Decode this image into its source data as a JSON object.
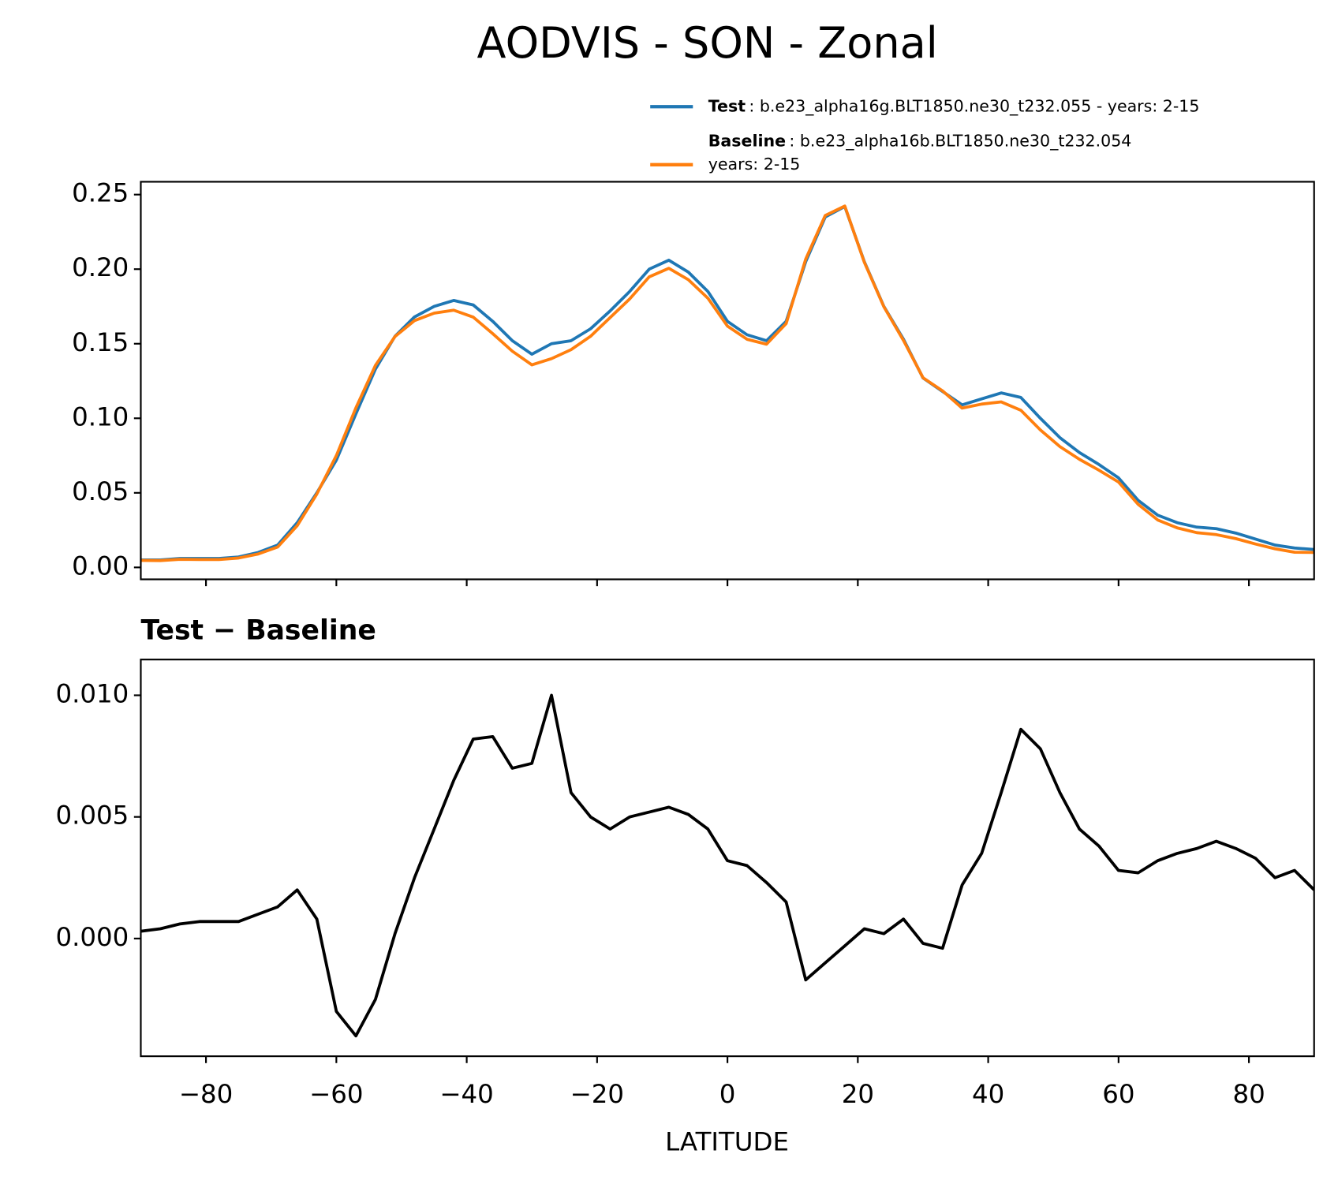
{
  "chart_data": [
    {
      "type": "line",
      "title": "AODVIS - SON - Zonal",
      "x": [
        -90,
        -87,
        -84,
        -81,
        -78,
        -75,
        -72,
        -69,
        -66,
        -63,
        -60,
        -57,
        -54,
        -51,
        -48,
        -45,
        -42,
        -39,
        -36,
        -33,
        -30,
        -27,
        -24,
        -21,
        -18,
        -15,
        -12,
        -9,
        -6,
        -3,
        0,
        3,
        6,
        9,
        12,
        15,
        18,
        21,
        24,
        27,
        30,
        33,
        36,
        39,
        42,
        45,
        48,
        51,
        54,
        57,
        60,
        63,
        66,
        69,
        72,
        75,
        78,
        81,
        84,
        87,
        90
      ],
      "series": [
        {
          "name": "Test",
          "label_lines": [
            ": b.e23_alpha16g.BLT1850.ne30_t232.055 - years: 2-15"
          ],
          "color": "#1f77b4",
          "values": [
            0.005,
            0.005,
            0.006,
            0.006,
            0.006,
            0.007,
            0.01,
            0.015,
            0.03,
            0.05,
            0.072,
            0.103,
            0.133,
            0.155,
            0.168,
            0.175,
            0.179,
            0.176,
            0.165,
            0.152,
            0.143,
            0.15,
            0.152,
            0.16,
            0.172,
            0.185,
            0.2,
            0.206,
            0.198,
            0.185,
            0.165,
            0.156,
            0.152,
            0.165,
            0.205,
            0.235,
            0.242,
            0.205,
            0.175,
            0.153,
            0.127,
            0.118,
            0.109,
            0.113,
            0.117,
            0.114,
            0.1,
            0.087,
            0.077,
            0.069,
            0.06,
            0.045,
            0.035,
            0.03,
            0.027,
            0.026,
            0.023,
            0.019,
            0.015,
            0.013,
            0.012
          ]
        },
        {
          "name": "Baseline",
          "label_lines": [
            ": b.e23_alpha16b.BLT1850.ne30_t232.054",
            "years: 2-15"
          ],
          "color": "#ff7f0e",
          "values": [
            0.0047,
            0.0046,
            0.0054,
            0.0053,
            0.0053,
            0.0063,
            0.009,
            0.0137,
            0.028,
            0.0492,
            0.075,
            0.107,
            0.1355,
            0.1548,
            0.1655,
            0.1705,
            0.1725,
            0.1678,
            0.1567,
            0.145,
            0.1358,
            0.14,
            0.146,
            0.155,
            0.1675,
            0.18,
            0.1948,
            0.2006,
            0.1929,
            0.1805,
            0.1618,
            0.153,
            0.1497,
            0.1635,
            0.2067,
            0.236,
            0.2423,
            0.2046,
            0.1748,
            0.1522,
            0.1272,
            0.1184,
            0.1068,
            0.1095,
            0.111,
            0.1054,
            0.0922,
            0.081,
            0.0725,
            0.0652,
            0.0572,
            0.0423,
            0.0318,
            0.0265,
            0.0233,
            0.022,
            0.0193,
            0.0157,
            0.0125,
            0.0102,
            0.01
          ]
        }
      ],
      "xlim": [
        -90,
        90
      ],
      "xticks": [
        -80,
        -60,
        -40,
        -20,
        0,
        20,
        40,
        60,
        80
      ],
      "ylim": [
        -0.008,
        0.2586
      ],
      "yticks": [
        {
          "value": 0,
          "label": "0.00"
        },
        {
          "value": 0.05,
          "label": "0.05"
        },
        {
          "value": 0.1,
          "label": "0.10"
        },
        {
          "value": 0.15,
          "label": "0.15"
        },
        {
          "value": 0.2,
          "label": "0.20"
        },
        {
          "value": 0.25,
          "label": "0.25"
        }
      ]
    },
    {
      "type": "line",
      "title": "Test − Baseline",
      "xlabel": "LATITUDE",
      "color": "#000000",
      "x": [
        -90,
        -87,
        -84,
        -81,
        -78,
        -75,
        -72,
        -69,
        -66,
        -63,
        -60,
        -57,
        -54,
        -51,
        -48,
        -45,
        -42,
        -39,
        -36,
        -33,
        -30,
        -27,
        -24,
        -21,
        -18,
        -15,
        -12,
        -9,
        -6,
        -3,
        0,
        3,
        6,
        9,
        12,
        15,
        18,
        21,
        24,
        27,
        30,
        33,
        36,
        39,
        42,
        45,
        48,
        51,
        54,
        57,
        60,
        63,
        66,
        69,
        72,
        75,
        78,
        81,
        84,
        87,
        90
      ],
      "values": [
        0.0003,
        0.0004,
        0.0006,
        0.0007,
        0.0007,
        0.0007,
        0.001,
        0.0013,
        0.002,
        0.0008,
        -0.003,
        -0.004,
        -0.0025,
        0.0002,
        0.0025,
        0.0045,
        0.0065,
        0.0082,
        0.0083,
        0.007,
        0.0072,
        0.01,
        0.006,
        0.005,
        0.0045,
        0.005,
        0.0052,
        0.0054,
        0.0051,
        0.0045,
        0.0032,
        0.003,
        0.0023,
        0.0015,
        -0.0017,
        -0.001,
        -0.0003,
        0.0004,
        0.0002,
        0.0008,
        -0.0002,
        -0.0004,
        0.0022,
        0.0035,
        0.006,
        0.0086,
        0.0078,
        0.006,
        0.0045,
        0.0038,
        0.0028,
        0.0027,
        0.0032,
        0.0035,
        0.0037,
        0.004,
        0.0037,
        0.0033,
        0.0025,
        0.0028,
        0.002
      ],
      "xlim": [
        -90,
        90
      ],
      "xticks": [
        {
          "value": -80,
          "label": "−80"
        },
        {
          "value": -60,
          "label": "−60"
        },
        {
          "value": -40,
          "label": "−40"
        },
        {
          "value": -20,
          "label": "−20"
        },
        0,
        20,
        40,
        60,
        80
      ],
      "ylim": [
        -0.00484,
        0.01147
      ],
      "yticks": [
        {
          "value": 0,
          "label": "0.000"
        },
        {
          "value": 0.005,
          "label": "0.005"
        },
        {
          "value": 0.01,
          "label": "0.010"
        }
      ]
    }
  ]
}
